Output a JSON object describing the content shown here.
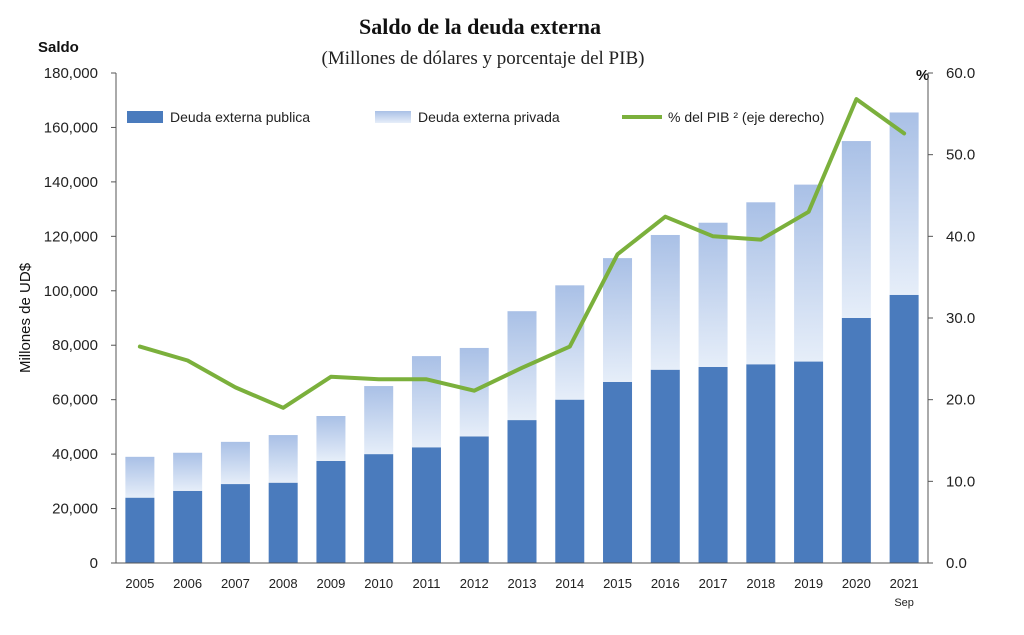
{
  "chart_data": {
    "type": "bar",
    "stacked": true,
    "title": "Saldo de la deuda externa",
    "subtitle": "(Millones  de dólares y porcentaje del PIB)",
    "left_axis_heading": "Saldo",
    "right_axis_heading": "%",
    "ylabel": "Millones de UD$",
    "ylim": [
      0,
      180000
    ],
    "y2lim": [
      0,
      60
    ],
    "yticks": [
      "0",
      "20,000",
      "40,000",
      "60,000",
      "80,000",
      "100,000",
      "120,000",
      "140,000",
      "160,000",
      "180,000"
    ],
    "y2ticks": [
      "0.0",
      "10.0",
      "20.0",
      "30.0",
      "40.0",
      "50.0",
      "60.0"
    ],
    "categories": [
      "2005",
      "2006",
      "2007",
      "2008",
      "2009",
      "2010",
      "2011",
      "2012",
      "2013",
      "2014",
      "2015",
      "2016",
      "2017",
      "2018",
      "2019",
      "2020",
      "2021"
    ],
    "category_sublabels": {
      "2021": "Sep"
    },
    "grid": false,
    "legend_position": "top",
    "series": [
      {
        "name": "Deuda externa publica",
        "type": "bar",
        "axis": "left",
        "color": "#4a7bbd",
        "values": [
          24000,
          26500,
          29000,
          29500,
          37500,
          40000,
          42500,
          46500,
          52500,
          60000,
          66500,
          71000,
          72000,
          73000,
          74000,
          90000,
          98500
        ]
      },
      {
        "name": "Deuda externa privada",
        "type": "bar",
        "axis": "left",
        "color_top": "#a9c0e6",
        "color_bottom": "#e6eef9",
        "values": [
          15000,
          14000,
          15500,
          17500,
          16500,
          25000,
          33500,
          32500,
          40000,
          42000,
          45500,
          49500,
          53000,
          59500,
          65000,
          65000,
          67000
        ]
      },
      {
        "name": "% del PIB ² (eje derecho)",
        "type": "line",
        "axis": "right",
        "color": "#7bb03c",
        "values": [
          26.5,
          24.8,
          21.5,
          19.0,
          22.8,
          22.5,
          22.5,
          21.1,
          23.9,
          26.5,
          37.8,
          42.4,
          40.0,
          39.6,
          43.0,
          56.8,
          52.6
        ]
      }
    ]
  }
}
